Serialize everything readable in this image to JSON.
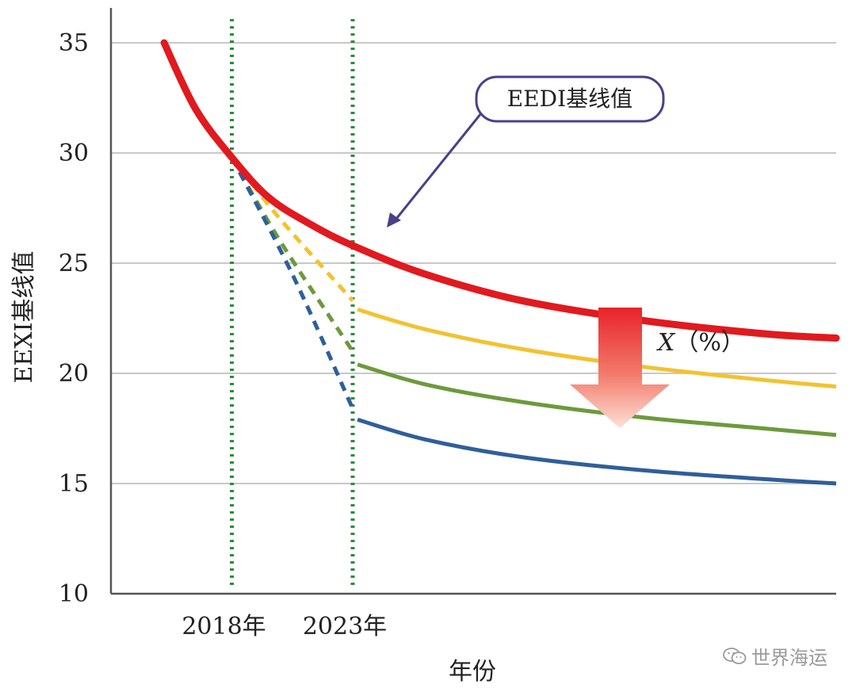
{
  "chart_data": {
    "type": "line",
    "title": "",
    "xlabel": "年份",
    "ylabel": "EEXI基线值",
    "ylim": [
      10,
      35
    ],
    "yticks": [
      10,
      15,
      20,
      25,
      30,
      35
    ],
    "xlim": [
      2013,
      2043
    ],
    "xticks": [
      {
        "x": 2018,
        "label": "2018年"
      },
      {
        "x": 2023,
        "label": "2023年"
      }
    ],
    "grid": "horizontal",
    "series": [
      {
        "name": "EEDI基线值",
        "color": "#e01a1f",
        "style": "solid",
        "points": [
          [
            2015.2,
            35.0
          ],
          [
            2016.5,
            32.0
          ],
          [
            2018.0,
            29.8
          ],
          [
            2019.5,
            28.0
          ],
          [
            2021.2,
            26.8
          ],
          [
            2023.0,
            25.8
          ],
          [
            2026.0,
            24.5
          ],
          [
            2030.0,
            23.3
          ],
          [
            2035.0,
            22.4
          ],
          [
            2040.0,
            21.8
          ],
          [
            2043.0,
            21.6
          ]
        ]
      },
      {
        "color": "#f2c230",
        "style": "dashed",
        "points": [
          [
            2018.0,
            29.8
          ],
          [
            2020.0,
            27.0
          ],
          [
            2023.0,
            23.3
          ]
        ]
      },
      {
        "color": "#f2c230",
        "style": "solid",
        "points": [
          [
            2023.2,
            22.9
          ],
          [
            2026.0,
            22.0
          ],
          [
            2030.0,
            21.1
          ],
          [
            2035.0,
            20.3
          ],
          [
            2040.0,
            19.7
          ],
          [
            2043.0,
            19.4
          ]
        ]
      },
      {
        "color": "#6d9a3c",
        "style": "dashed",
        "points": [
          [
            2018.0,
            29.8
          ],
          [
            2020.0,
            26.0
          ],
          [
            2023.0,
            21.0
          ]
        ]
      },
      {
        "color": "#6d9a3c",
        "style": "solid",
        "points": [
          [
            2023.2,
            20.4
          ],
          [
            2026.0,
            19.5
          ],
          [
            2030.0,
            18.7
          ],
          [
            2035.0,
            18.0
          ],
          [
            2040.0,
            17.5
          ],
          [
            2043.0,
            17.2
          ]
        ]
      },
      {
        "color": "#2f5f9a",
        "style": "dashed",
        "points": [
          [
            2018.0,
            29.8
          ],
          [
            2020.5,
            24.5
          ],
          [
            2023.0,
            18.4
          ]
        ]
      },
      {
        "color": "#2f5f9a",
        "style": "solid",
        "points": [
          [
            2023.2,
            17.9
          ],
          [
            2026.0,
            17.0
          ],
          [
            2030.0,
            16.2
          ],
          [
            2035.0,
            15.6
          ],
          [
            2040.0,
            15.2
          ],
          [
            2043.0,
            15.0
          ]
        ]
      }
    ],
    "vlines": [
      2018,
      2023
    ],
    "annotations": {
      "callout_label": "EEDI基线值",
      "callout_target": {
        "x": 2020.2,
        "y": 26.7
      },
      "reduction_label_x": "X",
      "reduction_label_rest": "（%）"
    }
  },
  "watermark": {
    "text": "世界海运",
    "icon": "wechat-icon"
  }
}
